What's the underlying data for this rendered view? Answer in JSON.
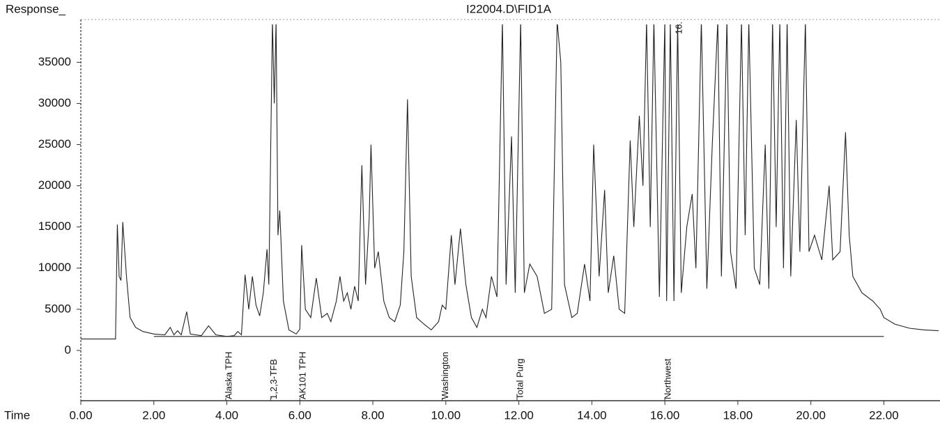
{
  "chart_data": {
    "type": "line",
    "title": "I22004.D\\FID1A",
    "ylabel": "Response_",
    "xlabel": "Time",
    "xlim": [
      0,
      23.5
    ],
    "ylim": [
      -6100,
      39600
    ],
    "xticks": [
      {
        "value": 0,
        "label": "0.00"
      },
      {
        "value": 2,
        "label": "2.00"
      },
      {
        "value": 4,
        "label": "4.00"
      },
      {
        "value": 6,
        "label": "6.00"
      },
      {
        "value": 8,
        "label": "8.00"
      },
      {
        "value": 10,
        "label": "10.00"
      },
      {
        "value": 12,
        "label": "12.00"
      },
      {
        "value": 14,
        "label": "14.00"
      },
      {
        "value": 16,
        "label": "16.00"
      },
      {
        "value": 18,
        "label": "18.00"
      },
      {
        "value": 20,
        "label": "20.00"
      },
      {
        "value": 22,
        "label": "22.00"
      }
    ],
    "yticks": [
      0,
      5000,
      10000,
      15000,
      20000,
      25000,
      30000,
      35000
    ],
    "annotations": [
      {
        "text": "Alaska TPH",
        "x": 3.97
      },
      {
        "text": "1,2,3-TFB",
        "x": 5.2
      },
      {
        "text": "AK101 TPH",
        "x": 6.0
      },
      {
        "text": "Washington",
        "x": 9.9
      },
      {
        "text": "Total Purg",
        "x": 11.95
      },
      {
        "text": "Northwest",
        "x": 16.0
      }
    ],
    "top_annotation": {
      "text": "16.",
      "x": 16.3
    },
    "series": [
      {
        "color": "#222222",
        "x": [
          0.0,
          0.95,
          1.0,
          1.05,
          1.1,
          1.15,
          1.25,
          1.35,
          1.5,
          1.7,
          2.0,
          2.3,
          2.45,
          2.55,
          2.65,
          2.75,
          2.9,
          3.0,
          3.3,
          3.5,
          3.7,
          4.0,
          4.2,
          4.3,
          4.4,
          4.5,
          4.6,
          4.7,
          4.8,
          4.9,
          5.0,
          5.1,
          5.15,
          5.25,
          5.3,
          5.35,
          5.4,
          5.45,
          5.55,
          5.7,
          5.9,
          6.0,
          6.05,
          6.15,
          6.3,
          6.45,
          6.6,
          6.75,
          6.85,
          7.0,
          7.1,
          7.2,
          7.3,
          7.4,
          7.5,
          7.6,
          7.7,
          7.8,
          7.9,
          7.95,
          8.05,
          8.15,
          8.3,
          8.45,
          8.6,
          8.75,
          8.85,
          8.95,
          9.05,
          9.2,
          9.4,
          9.6,
          9.8,
          9.9,
          10.0,
          10.15,
          10.25,
          10.4,
          10.55,
          10.7,
          10.85,
          11.0,
          11.1,
          11.25,
          11.4,
          11.55,
          11.65,
          11.8,
          11.9,
          12.05,
          12.15,
          12.3,
          12.5,
          12.7,
          12.9,
          13.05,
          13.15,
          13.25,
          13.45,
          13.6,
          13.8,
          13.95,
          14.05,
          14.2,
          14.35,
          14.45,
          14.6,
          14.75,
          14.9,
          15.05,
          15.15,
          15.3,
          15.4,
          15.5,
          15.6,
          15.7,
          15.85,
          16.0,
          16.05,
          16.15,
          16.25,
          16.35,
          16.45,
          16.6,
          16.75,
          16.85,
          17.0,
          17.15,
          17.3,
          17.45,
          17.55,
          17.7,
          17.8,
          17.95,
          18.1,
          18.2,
          18.3,
          18.45,
          18.6,
          18.75,
          18.85,
          18.95,
          19.05,
          19.15,
          19.25,
          19.35,
          19.45,
          19.6,
          19.7,
          19.85,
          19.95,
          20.1,
          20.3,
          20.5,
          20.6,
          20.8,
          20.95,
          21.05,
          21.15,
          21.4,
          21.7,
          21.9,
          22.0,
          22.3,
          22.7,
          23.1,
          23.5
        ],
        "values": [
          1400,
          1400,
          15300,
          9000,
          8500,
          15600,
          9000,
          4000,
          2800,
          2300,
          2000,
          1900,
          2800,
          1900,
          2400,
          1900,
          4700,
          2000,
          1800,
          3000,
          1900,
          1700,
          1800,
          2300,
          1900,
          9200,
          5000,
          9000,
          5500,
          4200,
          7000,
          12300,
          8000,
          40000,
          30000,
          40000,
          14000,
          17000,
          6000,
          2500,
          2000,
          2600,
          12800,
          5000,
          4000,
          8800,
          4000,
          4500,
          3500,
          6000,
          9000,
          6000,
          7000,
          5000,
          7800,
          6000,
          22500,
          8000,
          16000,
          25000,
          10000,
          12000,
          6000,
          4000,
          3500,
          5500,
          12000,
          30500,
          9000,
          4000,
          3200,
          2500,
          3500,
          5500,
          5000,
          14000,
          8000,
          14800,
          8000,
          4000,
          2800,
          5000,
          4000,
          9000,
          6500,
          40000,
          8000,
          26000,
          7000,
          40000,
          7000,
          10500,
          9000,
          4500,
          5000,
          40000,
          35000,
          8000,
          4000,
          4500,
          10500,
          6000,
          25000,
          9000,
          19500,
          7000,
          11500,
          5000,
          4500,
          25500,
          15000,
          28500,
          20000,
          40000,
          15000,
          40000,
          6500,
          40000,
          6000,
          40000,
          6000,
          40000,
          7000,
          15000,
          19000,
          10000,
          40000,
          7500,
          25000,
          40000,
          9000,
          40000,
          12000,
          7500,
          40000,
          14000,
          40000,
          10000,
          8000,
          25000,
          7500,
          40000,
          15000,
          40000,
          10000,
          40000,
          9000,
          28000,
          12000,
          40000,
          12000,
          14000,
          11000,
          20000,
          11000,
          12000,
          26500,
          14000,
          9000,
          7000,
          6000,
          5000,
          4000,
          3200,
          2700,
          2500,
          2400
        ]
      },
      {
        "color": "#222222",
        "x": [
          2.0,
          22.0
        ],
        "values": [
          1700,
          1700
        ]
      }
    ]
  }
}
